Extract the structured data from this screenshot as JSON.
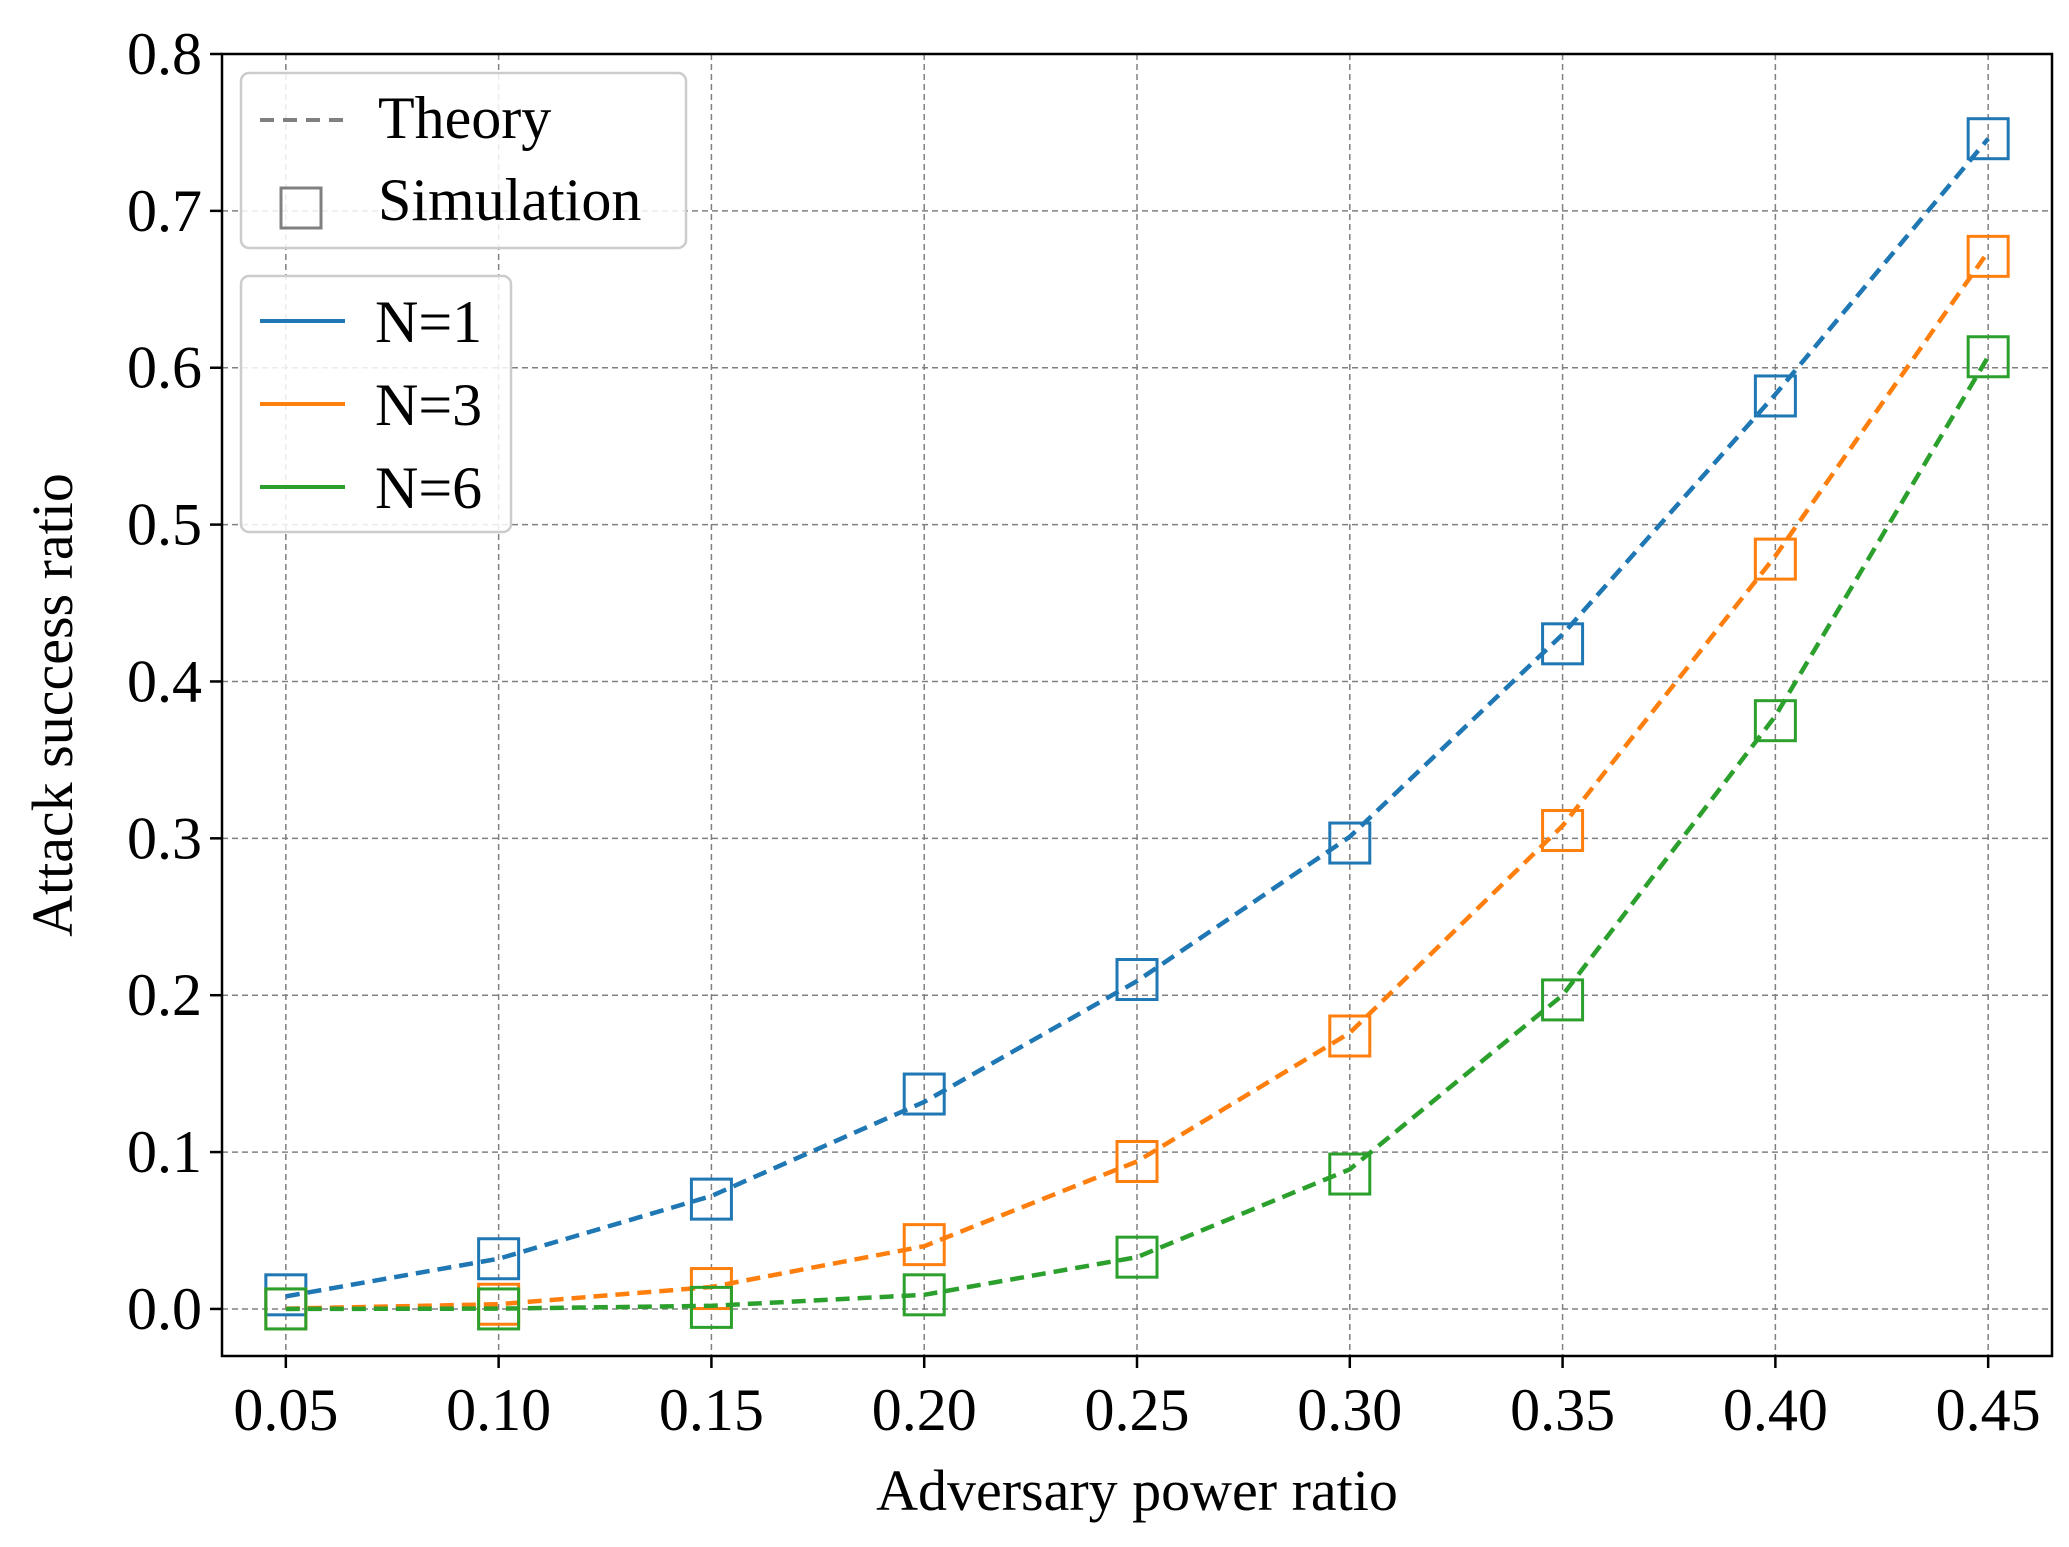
{
  "chart_data": {
    "type": "line",
    "title": "",
    "xlabel": "Adversary power ratio",
    "ylabel": "Attack success ratio",
    "xlim": [
      0.035,
      0.465
    ],
    "ylim": [
      -0.03,
      0.8
    ],
    "x_ticks": [
      "0.05",
      "0.10",
      "0.15",
      "0.20",
      "0.25",
      "0.30",
      "0.35",
      "0.40",
      "0.45"
    ],
    "y_ticks": [
      "0.0",
      "0.1",
      "0.2",
      "0.3",
      "0.4",
      "0.5",
      "0.6",
      "0.7",
      "0.8"
    ],
    "x": [
      0.05,
      0.1,
      0.15,
      0.2,
      0.25,
      0.3,
      0.35,
      0.4,
      0.45
    ],
    "grid": true,
    "style_legend": {
      "placement": "top-left",
      "entries": [
        {
          "label": "Theory",
          "style": "dashed-line",
          "color": "#808080"
        },
        {
          "label": "Simulation",
          "style": "square-marker",
          "color": "#808080"
        }
      ]
    },
    "series_legend": {
      "placement": "upper-left",
      "entries": [
        "N=1",
        "N=3",
        "N=6"
      ]
    },
    "series": [
      {
        "name": "N=1",
        "color": "#1f77b4",
        "theory": [
          0.008,
          0.032,
          0.072,
          0.132,
          0.209,
          0.301,
          0.43,
          0.583,
          0.746
        ],
        "simulation": [
          0.009,
          0.032,
          0.07,
          0.137,
          0.21,
          0.297,
          0.424,
          0.582,
          0.746
        ]
      },
      {
        "name": "N=3",
        "color": "#ff7f0e",
        "theory": [
          0.0002,
          0.003,
          0.014,
          0.04,
          0.094,
          0.176,
          0.308,
          0.48,
          0.674
        ],
        "simulation": [
          0.0,
          0.003,
          0.013,
          0.041,
          0.094,
          0.174,
          0.305,
          0.478,
          0.671
        ]
      },
      {
        "name": "N=6",
        "color": "#2ca02c",
        "theory": [
          0.0,
          0.0002,
          0.002,
          0.009,
          0.033,
          0.089,
          0.2,
          0.378,
          0.607
        ],
        "simulation": [
          0.0,
          0.0,
          0.001,
          0.009,
          0.033,
          0.086,
          0.197,
          0.375,
          0.607
        ]
      }
    ]
  }
}
